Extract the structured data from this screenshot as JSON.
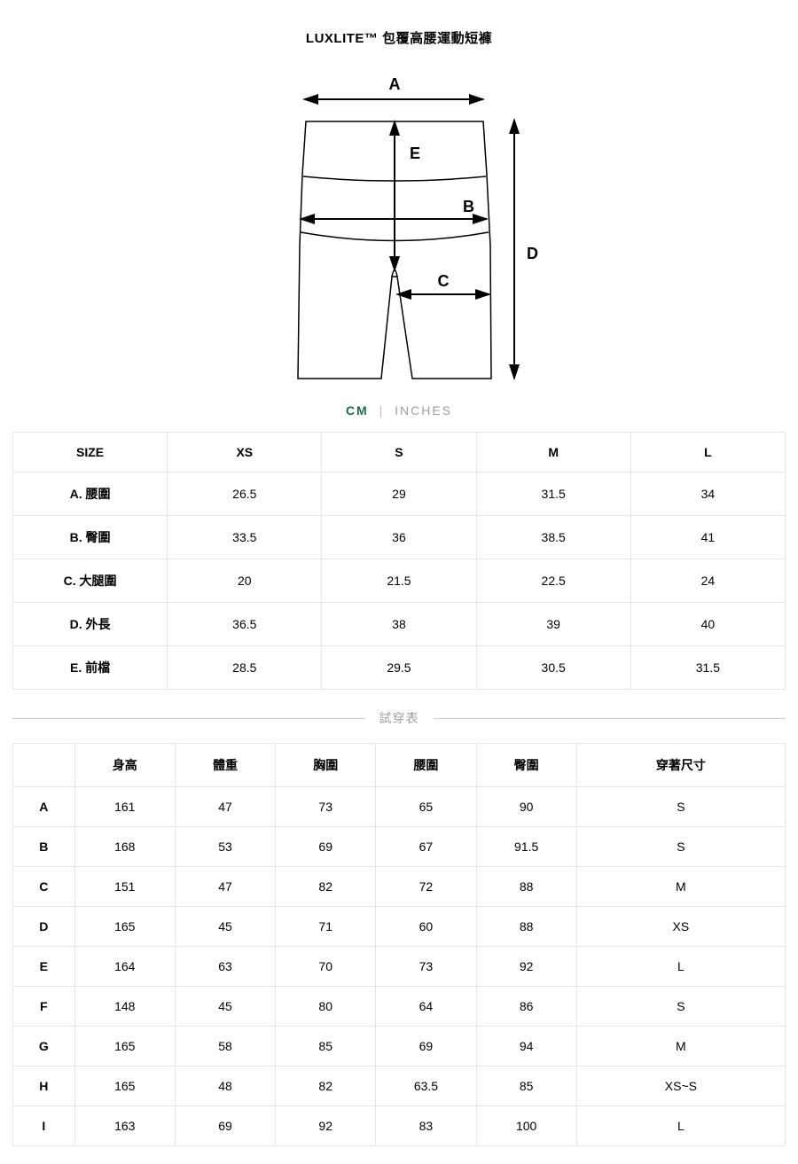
{
  "title": "LUXLITE™ 包覆高腰運動短褲",
  "unit_toggle": {
    "cm": "CM",
    "inches": "INCHES",
    "active": "cm"
  },
  "diagram": {
    "labels": {
      "A": "A",
      "B": "B",
      "C": "C",
      "D": "D",
      "E": "E"
    },
    "stroke_color": "#000000",
    "fill_color": "#ffffff"
  },
  "size_table": {
    "columns": [
      "SIZE",
      "XS",
      "S",
      "M",
      "L"
    ],
    "rows": [
      {
        "label": "A. 腰圍",
        "values": [
          "26.5",
          "29",
          "31.5",
          "34"
        ]
      },
      {
        "label": "B. 臀圍",
        "values": [
          "33.5",
          "36",
          "38.5",
          "41"
        ]
      },
      {
        "label": "C. 大腿圍",
        "values": [
          "20",
          "21.5",
          "22.5",
          "24"
        ]
      },
      {
        "label": "D. 外長",
        "values": [
          "36.5",
          "38",
          "39",
          "40"
        ]
      },
      {
        "label": "E. 前檔",
        "values": [
          "28.5",
          "29.5",
          "30.5",
          "31.5"
        ]
      }
    ]
  },
  "fit_divider_label": "試穿表",
  "fit_table": {
    "columns": [
      "",
      "身高",
      "體重",
      "胸圍",
      "腰圍",
      "臀圍",
      "穿著尺寸"
    ],
    "rows": [
      {
        "label": "A",
        "values": [
          "161",
          "47",
          "73",
          "65",
          "90",
          "S"
        ]
      },
      {
        "label": "B",
        "values": [
          "168",
          "53",
          "69",
          "67",
          "91.5",
          "S"
        ]
      },
      {
        "label": "C",
        "values": [
          "151",
          "47",
          "82",
          "72",
          "88",
          "M"
        ]
      },
      {
        "label": "D",
        "values": [
          "165",
          "45",
          "71",
          "60",
          "88",
          "XS"
        ]
      },
      {
        "label": "E",
        "values": [
          "164",
          "63",
          "70",
          "73",
          "92",
          "L"
        ]
      },
      {
        "label": "F",
        "values": [
          "148",
          "45",
          "80",
          "64",
          "86",
          "S"
        ]
      },
      {
        "label": "G",
        "values": [
          "165",
          "58",
          "85",
          "69",
          "94",
          "M"
        ]
      },
      {
        "label": "H",
        "values": [
          "165",
          "48",
          "82",
          "63.5",
          "85",
          "XS~S"
        ]
      },
      {
        "label": "I",
        "values": [
          "163",
          "69",
          "92",
          "83",
          "100",
          "L"
        ]
      }
    ]
  }
}
